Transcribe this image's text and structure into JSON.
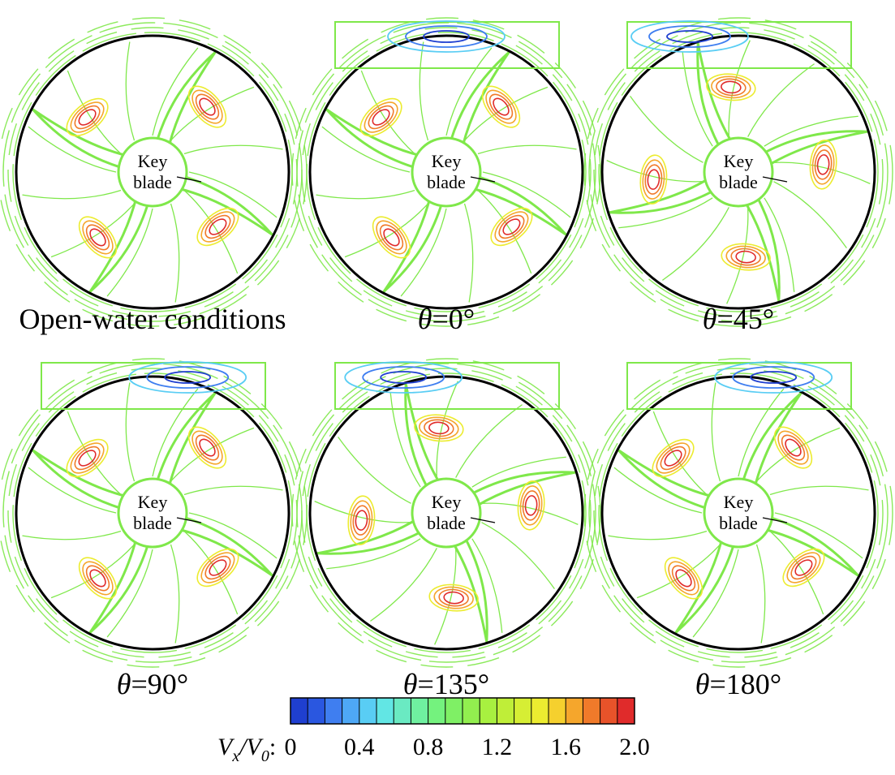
{
  "panels": [
    {
      "caption": "Open-water conditions",
      "caption_parts": [],
      "key_label": [
        "Key",
        "blade"
      ],
      "rotation_deg": 0,
      "box": false,
      "spot_angle": 0
    },
    {
      "caption": "",
      "caption_parts": [
        "θ",
        "=0°"
      ],
      "key_label": [
        "Key",
        "blade"
      ],
      "rotation_deg": 0,
      "box": true,
      "spot_angle": 0
    },
    {
      "caption": "",
      "caption_parts": [
        "θ",
        "=45°"
      ],
      "key_label": [
        "Key",
        "blade"
      ],
      "rotation_deg": -45,
      "box": true,
      "spot_angle": -25
    },
    {
      "caption": "",
      "caption_parts": [
        "θ",
        "=90°"
      ],
      "key_label": [
        "Key",
        "blade"
      ],
      "rotation_deg": 0,
      "box": true,
      "spot_angle": 18
    },
    {
      "caption": "",
      "caption_parts": [
        "θ",
        "=135°"
      ],
      "key_label": [
        "Key",
        "blade"
      ],
      "rotation_deg": -45,
      "box": true,
      "spot_angle": -22
    },
    {
      "caption": "",
      "caption_parts": [
        "θ",
        "=180°"
      ],
      "key_label": [
        "Key",
        "blade"
      ],
      "rotation_deg": 0,
      "box": true,
      "spot_angle": 18
    }
  ],
  "colorbar": {
    "label_main": "V",
    "label_sub1": "x",
    "label_sep": "/V",
    "label_sub2": "0",
    "label_colon": ":",
    "ticks": [
      "0",
      "0.4",
      "0.8",
      "1.2",
      "1.6",
      "2.0"
    ],
    "tick_values": [
      0,
      0.4,
      0.8,
      1.2,
      1.6,
      2.0
    ],
    "min": 0,
    "max": 2.0,
    "levels": 20,
    "colors": [
      "#1f3fd0",
      "#2a57e0",
      "#3f7ef0",
      "#4ea8f6",
      "#59cdf4",
      "#62e6e4",
      "#6aeac2",
      "#6ff0a0",
      "#74f27e",
      "#7ff065",
      "#92ef4f",
      "#a8f040",
      "#bfee38",
      "#d6ee34",
      "#ecec30",
      "#f5d02e",
      "#f5a62c",
      "#f07a2a",
      "#e8532a",
      "#e02b2b"
    ]
  },
  "colors": {
    "disk": "#000000",
    "contour_green": "#7fe84a",
    "box": "#7fe84a",
    "low_spot": [
      "#1f3fd0",
      "#3f7ef0",
      "#59cdf4"
    ],
    "high_spot": [
      "#e02b2b",
      "#f07a2a",
      "#f5a62c",
      "#ecec30"
    ]
  }
}
